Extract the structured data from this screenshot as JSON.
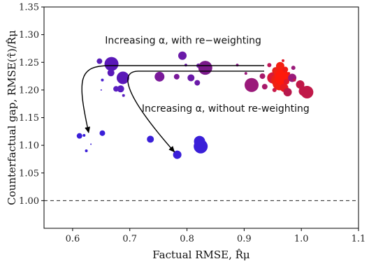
{
  "chart_data": {
    "type": "scatter",
    "title": "",
    "xlabel": "Factual RMSE, R̂μ",
    "ylabel": "Counterfactual gap, RMSE(τ̂)/R̂μ",
    "xlim": [
      0.55,
      1.1
    ],
    "ylim": [
      0.95,
      1.35
    ],
    "xticks": [
      "0.6",
      "0.7",
      "0.8",
      "0.9",
      "1.0",
      "1.1"
    ],
    "xtick_values": [
      0.6,
      0.7,
      0.8,
      0.9,
      1.0,
      1.1
    ],
    "yticks": [
      "1.00",
      "1.05",
      "1.10",
      "1.15",
      "1.20",
      "1.25",
      "1.30",
      "1.35"
    ],
    "ytick_values": [
      1.0,
      1.05,
      1.1,
      1.15,
      1.2,
      1.25,
      1.3,
      1.35
    ],
    "grid": false,
    "reference_line": {
      "y": 1.0,
      "style": "dashed"
    },
    "points": [
      {
        "x": 0.612,
        "y": 1.117,
        "size": 4,
        "color": "#3a1fd8"
      },
      {
        "x": 0.62,
        "y": 1.118,
        "size": 2,
        "color": "#3a1fd8"
      },
      {
        "x": 0.624,
        "y": 1.09,
        "size": 2,
        "color": "#3a1fd8"
      },
      {
        "x": 0.632,
        "y": 1.102,
        "size": 1,
        "color": "#3a1fd8"
      },
      {
        "x": 0.652,
        "y": 1.122,
        "size": 4,
        "color": "#3a1fd8"
      },
      {
        "x": 0.647,
        "y": 1.252,
        "size": 4,
        "color": "#5a1fb8"
      },
      {
        "x": 0.652,
        "y": 1.218,
        "size": 2,
        "color": "#4a1fd0"
      },
      {
        "x": 0.65,
        "y": 1.2,
        "size": 1,
        "color": "#4a1fd0"
      },
      {
        "x": 0.668,
        "y": 1.247,
        "size": 10,
        "color": "#5a18b8"
      },
      {
        "x": 0.667,
        "y": 1.231,
        "size": 5,
        "color": "#5a18b8"
      },
      {
        "x": 0.676,
        "y": 1.202,
        "size": 4,
        "color": "#5a1fc0"
      },
      {
        "x": 0.684,
        "y": 1.202,
        "size": 5,
        "color": "#5a1fc0"
      },
      {
        "x": 0.688,
        "y": 1.222,
        "size": 9,
        "color": "#5a18b8"
      },
      {
        "x": 0.689,
        "y": 1.19,
        "size": 2,
        "color": "#5a1fc0"
      },
      {
        "x": 0.736,
        "y": 1.111,
        "size": 5,
        "color": "#3a1fd8"
      },
      {
        "x": 0.783,
        "y": 1.083,
        "size": 6,
        "color": "#3a1fd8"
      },
      {
        "x": 0.822,
        "y": 1.107,
        "size": 8,
        "color": "#3a1fd8"
      },
      {
        "x": 0.824,
        "y": 1.098,
        "size": 10,
        "color": "#3a1fd8"
      },
      {
        "x": 0.752,
        "y": 1.224,
        "size": 7,
        "color": "#7a1a9a"
      },
      {
        "x": 0.782,
        "y": 1.224,
        "size": 4,
        "color": "#7a1a9a"
      },
      {
        "x": 0.792,
        "y": 1.262,
        "size": 6,
        "color": "#6a1aa8"
      },
      {
        "x": 0.798,
        "y": 1.245,
        "size": 2,
        "color": "#6a1aa8"
      },
      {
        "x": 0.807,
        "y": 1.222,
        "size": 5,
        "color": "#6a1aa8"
      },
      {
        "x": 0.818,
        "y": 1.213,
        "size": 4,
        "color": "#6a1aa8"
      },
      {
        "x": 0.82,
        "y": 1.244,
        "size": 3,
        "color": "#6a1aa8"
      },
      {
        "x": 0.832,
        "y": 1.24,
        "size": 10,
        "color": "#7a1a8a"
      },
      {
        "x": 0.888,
        "y": 1.245,
        "size": 2,
        "color": "#8a1a8a"
      },
      {
        "x": 0.903,
        "y": 1.23,
        "size": 2,
        "color": "#9a1a7a"
      },
      {
        "x": 0.913,
        "y": 1.209,
        "size": 10,
        "color": "#9a1a7a"
      },
      {
        "x": 0.932,
        "y": 1.225,
        "size": 4,
        "color": "#a81a6a"
      },
      {
        "x": 0.936,
        "y": 1.206,
        "size": 4,
        "color": "#a81a6a"
      },
      {
        "x": 0.944,
        "y": 1.245,
        "size": 3,
        "color": "#c0185a"
      },
      {
        "x": 0.95,
        "y": 1.222,
        "size": 8,
        "color": "#d81a3a"
      },
      {
        "x": 0.953,
        "y": 1.2,
        "size": 3,
        "color": "#c81a4a"
      },
      {
        "x": 0.955,
        "y": 1.235,
        "size": 5,
        "color": "#e0201a"
      },
      {
        "x": 0.958,
        "y": 1.218,
        "size": 9,
        "color": "#e82018"
      },
      {
        "x": 0.96,
        "y": 1.232,
        "size": 7,
        "color": "#ee2214"
      },
      {
        "x": 0.962,
        "y": 1.212,
        "size": 10,
        "color": "#f02010"
      },
      {
        "x": 0.963,
        "y": 1.243,
        "size": 6,
        "color": "#f42010"
      },
      {
        "x": 0.965,
        "y": 1.228,
        "size": 8,
        "color": "#ff1a0a"
      },
      {
        "x": 0.967,
        "y": 1.222,
        "size": 11,
        "color": "#ff1a0a"
      },
      {
        "x": 0.968,
        "y": 1.253,
        "size": 2,
        "color": "#e01a2a"
      },
      {
        "x": 0.97,
        "y": 1.204,
        "size": 6,
        "color": "#e81a20"
      },
      {
        "x": 0.972,
        "y": 1.237,
        "size": 4,
        "color": "#f01a14"
      },
      {
        "x": 0.974,
        "y": 1.215,
        "size": 4,
        "color": "#e0182a"
      },
      {
        "x": 0.976,
        "y": 1.196,
        "size": 6,
        "color": "#b8184c"
      },
      {
        "x": 0.978,
        "y": 1.23,
        "size": 2,
        "color": "#e81a1a"
      },
      {
        "x": 0.981,
        "y": 1.225,
        "size": 2,
        "color": "#e81a1a"
      },
      {
        "x": 0.984,
        "y": 1.222,
        "size": 6,
        "color": "#9a1a7a"
      },
      {
        "x": 0.986,
        "y": 1.24,
        "size": 3,
        "color": "#9a1a7a"
      },
      {
        "x": 0.988,
        "y": 1.218,
        "size": 2,
        "color": "#c0184a"
      },
      {
        "x": 0.998,
        "y": 1.21,
        "size": 6,
        "color": "#c01848"
      },
      {
        "x": 1.004,
        "y": 1.198,
        "size": 7,
        "color": "#c01848"
      },
      {
        "x": 1.01,
        "y": 1.196,
        "size": 9,
        "color": "#c01848"
      }
    ],
    "annotations": [
      {
        "text": "Increasing α, with re−weighting",
        "x": 0.93,
        "y": 1.284,
        "anchor": "end"
      },
      {
        "text": "Increasing α, without re-weighting",
        "x": 0.721,
        "y": 1.161,
        "anchor": "start"
      }
    ],
    "arrows": [
      {
        "name": "with-reweighting",
        "path": [
          [
            0.935,
            1.244
          ],
          [
            0.665,
            1.244
          ],
          [
            0.61,
            1.22
          ],
          [
            0.628,
            1.123
          ]
        ]
      },
      {
        "name": "without-reweighting",
        "path": [
          [
            0.935,
            1.234
          ],
          [
            0.715,
            1.234
          ],
          [
            0.685,
            1.2
          ],
          [
            0.778,
            1.088
          ]
        ]
      }
    ]
  }
}
